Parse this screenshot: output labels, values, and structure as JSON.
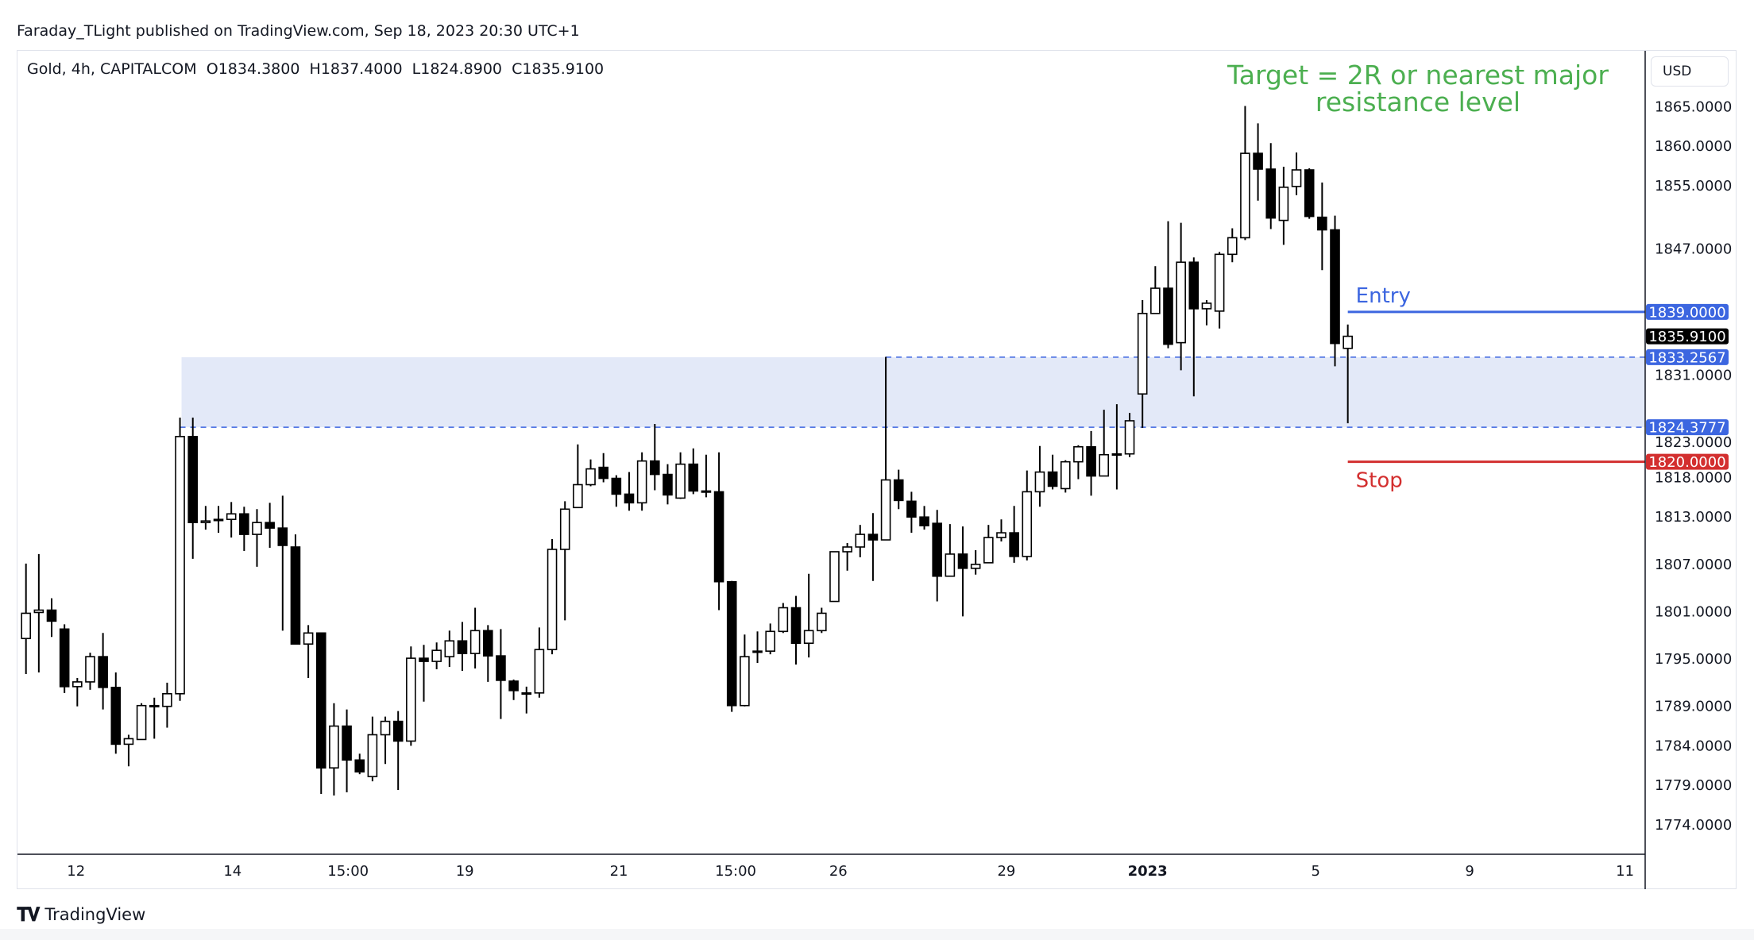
{
  "header": {
    "published": "Faraday_TLight published on TradingView.com, Sep 18, 2023 20:30 UTC+1"
  },
  "legend": {
    "symbol": "Gold, 4h, CAPITALCOM",
    "open": "O1834.3800",
    "high": "H1837.4000",
    "low": "L1824.8900",
    "close": "C1835.9100"
  },
  "currency_button": "USD",
  "footer": {
    "logo": "17",
    "brand": "TradingView"
  },
  "colors": {
    "up_body": "#ffffff",
    "down_body": "#000000",
    "zone": "#e3e9f8",
    "blue": "#3c66e0",
    "red": "#d32f2f",
    "green": "#4caf50"
  },
  "chart_data": {
    "type": "candlestick",
    "title": "Gold, 4h, CAPITALCOM",
    "ylim": [
      1769.5,
      1868.5
    ],
    "y_ticks": [
      "1865.0000",
      "1860.0000",
      "1855.0000",
      "1847.0000",
      "1831.0000",
      "1823.0000",
      "1818.0000",
      "1813.0000",
      "1807.0000",
      "1801.0000",
      "1795.0000",
      "1789.0000",
      "1784.0000",
      "1779.0000",
      "1774.0000"
    ],
    "x_ticks": [
      {
        "label": "12",
        "bar_index": 3.9,
        "bold": false
      },
      {
        "label": "14",
        "bar_index": 16.1,
        "bold": false
      },
      {
        "label": "15:00",
        "bar_index": 25.1,
        "bold": false
      },
      {
        "label": "19",
        "bar_index": 34.2,
        "bold": false
      },
      {
        "label": "21",
        "bar_index": 46.2,
        "bold": false
      },
      {
        "label": "15:00",
        "bar_index": 55.3,
        "bold": false
      },
      {
        "label": "26",
        "bar_index": 63.3,
        "bold": false
      },
      {
        "label": "29",
        "bar_index": 76.4,
        "bold": false
      },
      {
        "label": "2023",
        "bar_index": 87.4,
        "bold": true
      },
      {
        "label": "5",
        "bar_index": 100.5,
        "bold": false
      },
      {
        "label": "9",
        "bar_index": 112.5,
        "bold": false
      },
      {
        "label": "11",
        "bar_index": 124.6,
        "bold": false
      }
    ],
    "candles_ohlc": [
      [
        1797.6,
        1807.1,
        1793.1,
        1800.8
      ],
      [
        1800.9,
        1808.3,
        1793.3,
        1801.2
      ],
      [
        1801.2,
        1802.7,
        1797.8,
        1799.8
      ],
      [
        1798.8,
        1799.4,
        1790.7,
        1791.5
      ],
      [
        1791.5,
        1792.6,
        1789.0,
        1792.1
      ],
      [
        1792.1,
        1795.8,
        1791.1,
        1795.3
      ],
      [
        1795.3,
        1798.3,
        1788.6,
        1791.4
      ],
      [
        1791.4,
        1793.3,
        1783.0,
        1784.2
      ],
      [
        1784.2,
        1785.4,
        1781.4,
        1784.9
      ],
      [
        1784.8,
        1789.4,
        1784.8,
        1789.1
      ],
      [
        1789.1,
        1790.1,
        1784.9,
        1789.1
      ],
      [
        1789.0,
        1792.0,
        1786.3,
        1790.6
      ],
      [
        1790.6,
        1825.6,
        1789.7,
        1823.2
      ],
      [
        1823.2,
        1825.6,
        1807.7,
        1812.3
      ],
      [
        1812.3,
        1814.4,
        1811.4,
        1812.5
      ],
      [
        1812.7,
        1814.4,
        1811.0,
        1812.6
      ],
      [
        1812.7,
        1814.9,
        1810.4,
        1813.4
      ],
      [
        1813.4,
        1814.3,
        1808.7,
        1810.8
      ],
      [
        1810.8,
        1814.0,
        1806.7,
        1812.3
      ],
      [
        1812.3,
        1814.8,
        1809.1,
        1811.6
      ],
      [
        1811.6,
        1815.7,
        1798.6,
        1809.4
      ],
      [
        1809.2,
        1810.8,
        1796.9,
        1796.9
      ],
      [
        1796.9,
        1799.3,
        1792.6,
        1798.3
      ],
      [
        1798.3,
        1798.3,
        1777.9,
        1781.2
      ],
      [
        1781.2,
        1789.4,
        1777.7,
        1786.5
      ],
      [
        1786.5,
        1788.6,
        1778.1,
        1782.2
      ],
      [
        1782.2,
        1783.0,
        1780.4,
        1780.7
      ],
      [
        1780.1,
        1787.7,
        1779.5,
        1785.4
      ],
      [
        1785.4,
        1787.7,
        1781.7,
        1787.1
      ],
      [
        1787.1,
        1788.4,
        1778.4,
        1784.6
      ],
      [
        1784.6,
        1796.6,
        1784.0,
        1795.1
      ],
      [
        1795.1,
        1796.8,
        1789.6,
        1794.7
      ],
      [
        1794.7,
        1797.1,
        1793.7,
        1796.1
      ],
      [
        1795.3,
        1798.6,
        1794.0,
        1797.3
      ],
      [
        1797.3,
        1799.7,
        1793.5,
        1795.7
      ],
      [
        1795.7,
        1801.5,
        1793.8,
        1798.6
      ],
      [
        1798.6,
        1799.3,
        1792.1,
        1795.4
      ],
      [
        1795.4,
        1798.8,
        1787.4,
        1792.3
      ],
      [
        1792.2,
        1792.4,
        1789.8,
        1791.0
      ],
      [
        1790.7,
        1791.5,
        1788.1,
        1790.7
      ],
      [
        1790.7,
        1799.0,
        1790.1,
        1796.2
      ],
      [
        1796.2,
        1810.2,
        1795.6,
        1808.9
      ],
      [
        1808.9,
        1815.0,
        1799.9,
        1814.0
      ],
      [
        1814.2,
        1822.2,
        1814.2,
        1817.1
      ],
      [
        1817.1,
        1820.3,
        1816.9,
        1819.1
      ],
      [
        1819.3,
        1821.1,
        1817.4,
        1817.9
      ],
      [
        1817.9,
        1818.3,
        1814.3,
        1815.9
      ],
      [
        1815.9,
        1818.7,
        1813.8,
        1814.8
      ],
      [
        1814.8,
        1821.2,
        1813.8,
        1820.1
      ],
      [
        1820.1,
        1824.8,
        1816.4,
        1818.4
      ],
      [
        1818.4,
        1819.7,
        1814.6,
        1815.8
      ],
      [
        1815.4,
        1821.2,
        1815.3,
        1819.7
      ],
      [
        1819.7,
        1821.7,
        1815.9,
        1816.3
      ],
      [
        1816.3,
        1820.9,
        1815.5,
        1816.3
      ],
      [
        1816.2,
        1821.2,
        1801.2,
        1804.8
      ],
      [
        1804.8,
        1804.9,
        1788.3,
        1789.1
      ],
      [
        1789.1,
        1798.1,
        1789.0,
        1795.3
      ],
      [
        1796.0,
        1798.5,
        1794.5,
        1796.0
      ],
      [
        1796.0,
        1799.5,
        1795.6,
        1798.5
      ],
      [
        1798.5,
        1802.1,
        1798.3,
        1801.5
      ],
      [
        1801.5,
        1803.0,
        1794.3,
        1797.0
      ],
      [
        1797.0,
        1805.8,
        1795.2,
        1798.6
      ],
      [
        1798.6,
        1801.5,
        1798.3,
        1800.8
      ],
      [
        1802.3,
        1808.6,
        1802.3,
        1808.6
      ],
      [
        1808.6,
        1809.7,
        1806.2,
        1809.2
      ],
      [
        1809.2,
        1812.0,
        1807.9,
        1810.8
      ],
      [
        1810.8,
        1813.5,
        1804.9,
        1810.1
      ],
      [
        1810.1,
        1833.3,
        1810.1,
        1817.7
      ],
      [
        1817.7,
        1819.0,
        1814.0,
        1815.1
      ],
      [
        1815.0,
        1816.2,
        1811.0,
        1813.0
      ],
      [
        1813.0,
        1814.4,
        1811.4,
        1811.9
      ],
      [
        1812.2,
        1813.9,
        1802.3,
        1805.5
      ],
      [
        1805.5,
        1812.1,
        1805.5,
        1808.3
      ],
      [
        1808.3,
        1811.8,
        1800.4,
        1806.5
      ],
      [
        1806.5,
        1808.8,
        1805.7,
        1807.0
      ],
      [
        1807.2,
        1812.0,
        1807.2,
        1810.4
      ],
      [
        1810.4,
        1812.7,
        1809.9,
        1811.0
      ],
      [
        1811.0,
        1814.4,
        1807.2,
        1808.0
      ],
      [
        1808.0,
        1818.9,
        1807.5,
        1816.2
      ],
      [
        1816.2,
        1822.0,
        1814.3,
        1818.7
      ],
      [
        1818.7,
        1820.9,
        1816.5,
        1816.9
      ],
      [
        1816.6,
        1820.2,
        1816.1,
        1820.0
      ],
      [
        1820.0,
        1822.1,
        1817.8,
        1821.9
      ],
      [
        1821.9,
        1823.9,
        1815.7,
        1818.2
      ],
      [
        1818.2,
        1826.6,
        1818.2,
        1820.9
      ],
      [
        1821.0,
        1827.3,
        1816.5,
        1821.0
      ],
      [
        1821.0,
        1826.2,
        1820.6,
        1825.2
      ],
      [
        1828.6,
        1840.5,
        1824.3,
        1838.8
      ],
      [
        1838.8,
        1844.8,
        1838.8,
        1842.0
      ],
      [
        1842.0,
        1850.5,
        1834.4,
        1834.9
      ],
      [
        1835.1,
        1850.3,
        1831.6,
        1845.3
      ],
      [
        1845.3,
        1845.9,
        1828.3,
        1839.4
      ],
      [
        1839.4,
        1840.5,
        1837.3,
        1840.1
      ],
      [
        1839.1,
        1846.6,
        1836.9,
        1846.3
      ],
      [
        1846.3,
        1849.6,
        1845.3,
        1848.4
      ],
      [
        1848.4,
        1865.1,
        1848.1,
        1859.1
      ],
      [
        1859.1,
        1862.9,
        1853.1,
        1857.1
      ],
      [
        1857.1,
        1860.4,
        1849.5,
        1850.9
      ],
      [
        1850.6,
        1857.4,
        1847.5,
        1854.8
      ],
      [
        1854.9,
        1859.2,
        1853.8,
        1857.0
      ],
      [
        1857.0,
        1857.2,
        1850.8,
        1851.1
      ],
      [
        1851.0,
        1855.4,
        1844.3,
        1849.4
      ],
      [
        1849.4,
        1851.2,
        1832.1,
        1835.0
      ],
      [
        1834.38,
        1837.4,
        1824.89,
        1835.91
      ]
    ],
    "zone": {
      "top": 1833.2567,
      "bottom": 1824.3777,
      "start_bar": 12,
      "top_line_start_bar": 67
    },
    "levels": [
      {
        "name": "entry",
        "price": 1839.0,
        "label": "Entry",
        "tag": "1839.0000",
        "start_bar": 103
      },
      {
        "name": "stop",
        "price": 1820.0,
        "label": "Stop",
        "tag": "1820.0000",
        "start_bar": 103
      }
    ],
    "price_tags": [
      {
        "name": "entry-tag",
        "price": 1839.0,
        "text": "1839.0000",
        "color": "#3c66e0"
      },
      {
        "name": "last-price-tag",
        "price": 1835.91,
        "text": "1835.9100",
        "color": "#000000"
      },
      {
        "name": "zone-top-tag",
        "price": 1833.2567,
        "text": "1833.2567",
        "color": "#3c66e0"
      },
      {
        "name": "zone-bottom-tag",
        "price": 1824.3777,
        "text": "1824.3777",
        "color": "#3c66e0"
      },
      {
        "name": "stop-tag",
        "price": 1820.0,
        "text": "1820.0000",
        "color": "#d32f2f"
      }
    ],
    "annotation": {
      "line1": "Target = 2R or nearest major",
      "line2": "resistance level"
    }
  }
}
